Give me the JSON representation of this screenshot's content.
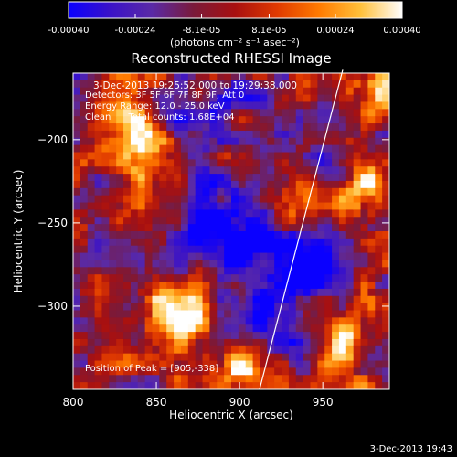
{
  "colorbar": {
    "ticks": [
      "-0.00040",
      "-0.00024",
      "-8.1e-05",
      "8.1e-05",
      "0.00024",
      "0.00040"
    ],
    "tick_values": [
      -0.0004,
      -0.00024,
      -8.1e-05,
      8.1e-05,
      0.00024,
      0.0004
    ],
    "range": [
      -0.0004,
      0.0004
    ],
    "unit_label": "(photons cm⁻² s⁻¹ asec⁻²)",
    "stops": [
      "#0a00ff",
      "#3a12c8",
      "#5a2aa6",
      "#7a1a3a",
      "#a81010",
      "#e03a00",
      "#ff7a00",
      "#ffc03a",
      "#ffffff"
    ]
  },
  "chart_data": {
    "type": "heatmap",
    "title": "Reconstructed RHESSI Image",
    "xlabel": "Heliocentric X (arcsec)",
    "ylabel": "Heliocentric Y (arcsec)",
    "x_ticks": [
      800,
      850,
      900,
      950
    ],
    "y_ticks": [
      -200,
      -250,
      -300
    ],
    "xlim": [
      800,
      990
    ],
    "ylim": [
      -350,
      -160
    ],
    "annotations": [
      "3-Dec-2013 19:25:52.000 to 19:29:38.000",
      "Detectors: 3F 5F 6F 7F 8F 9F, Att 0",
      "Energy Range: 12.0 - 25.0 keV",
      "Clean      Total counts: 1.68E+04"
    ],
    "peak_label": "Position of Peak = [905,-338]",
    "peak": [
      905,
      -338
    ],
    "limb_line": [
      [
        912,
        -350
      ],
      [
        962,
        -158
      ]
    ],
    "bright_sources": [
      {
        "x": 865,
        "y": -300,
        "level": 1.0
      },
      {
        "x": 905,
        "y": -338,
        "level": 1.0
      },
      {
        "x": 845,
        "y": -207,
        "level": 0.85
      },
      {
        "x": 830,
        "y": -175,
        "level": 0.7
      },
      {
        "x": 960,
        "y": -320,
        "level": 0.75
      },
      {
        "x": 975,
        "y": -230,
        "level": 0.7
      },
      {
        "x": 980,
        "y": -170,
        "level": 0.75
      },
      {
        "x": 940,
        "y": -240,
        "level": 0.6
      }
    ],
    "faint_regions": [
      {
        "x": 890,
        "y": -255,
        "level": -1.0
      },
      {
        "x": 935,
        "y": -275,
        "level": -0.9
      },
      {
        "x": 920,
        "y": -315,
        "level": -0.85
      },
      {
        "x": 880,
        "y": -180,
        "level": -0.6
      },
      {
        "x": 950,
        "y": -195,
        "level": -0.55
      }
    ]
  },
  "footer": {
    "timestamp": "3-Dec-2013 19:43"
  }
}
